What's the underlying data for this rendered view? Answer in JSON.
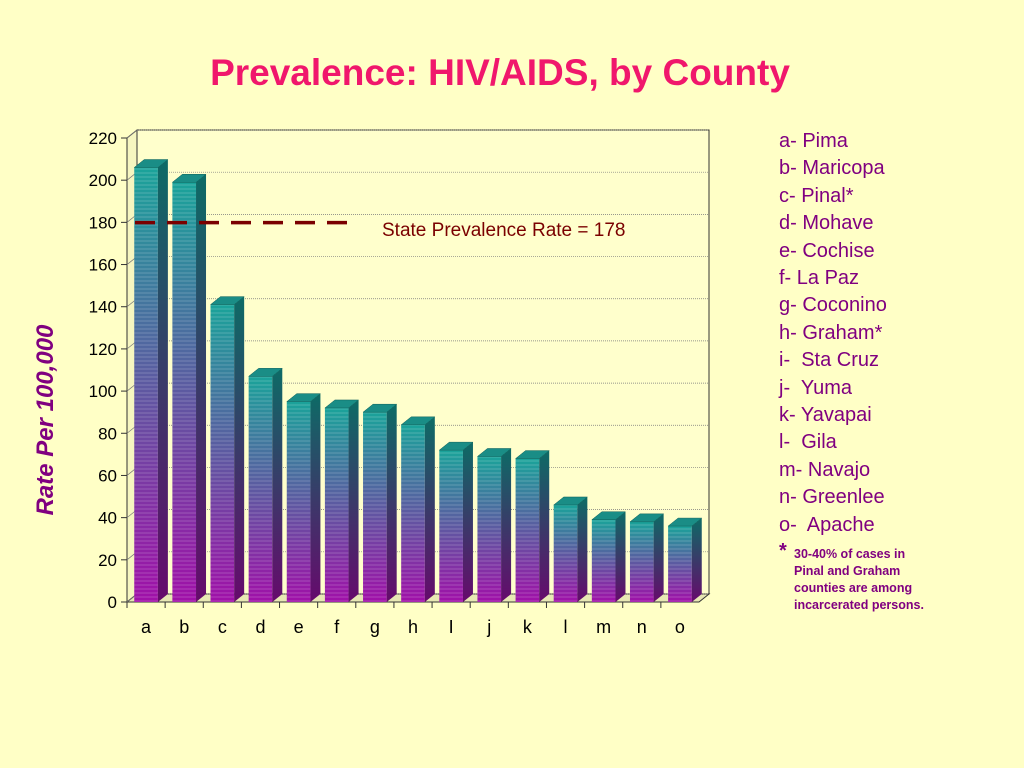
{
  "title": "Prevalence: HIV/AIDS, by County",
  "chart_data": {
    "type": "bar",
    "title": "Prevalence: HIV/AIDS, by County",
    "ylabel": "Rate  Per  100,000",
    "xlabel": "",
    "categories": [
      "a",
      "b",
      "c",
      "d",
      "e",
      "f",
      "g",
      "h",
      "I",
      "j",
      "k",
      "l",
      "m",
      "n",
      "o"
    ],
    "values": [
      206,
      199,
      141,
      107,
      95,
      92,
      90,
      84,
      72,
      69,
      68,
      46,
      39,
      38,
      36
    ],
    "ylim": [
      0,
      220
    ],
    "yticks": [
      0,
      20,
      40,
      60,
      80,
      100,
      120,
      140,
      160,
      180,
      200,
      220
    ],
    "grid": true,
    "reference_line": {
      "value": 178,
      "label": "State Prevalence Rate = 178",
      "style": "dashed",
      "color": "#7a0000"
    },
    "colors": {
      "bar_top": "#1aa39a",
      "bar_bottom": "#a010a8",
      "title": "#f0176c",
      "text": "#800080"
    }
  },
  "legend": {
    "items": [
      "a- Pima",
      "b- Maricopa",
      "c- Pinal*",
      "d- Mohave",
      "e- Cochise",
      "f- La Paz",
      "g- Coconino",
      "h- Graham*",
      "i-  Sta Cruz",
      "j-  Yuma",
      "k- Yavapai",
      "l-  Gila",
      "m- Navajo",
      "n- Greenlee",
      "o-  Apache"
    ],
    "footnote_marker": "*",
    "footnote": "30-40% of cases in Pinal and Graham counties are among incarcerated persons."
  }
}
